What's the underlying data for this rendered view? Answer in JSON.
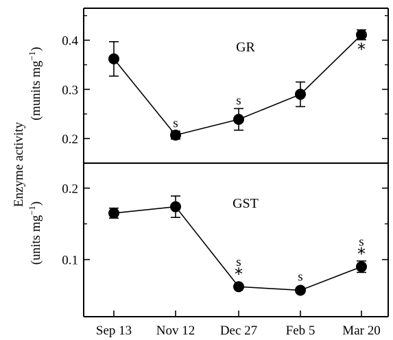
{
  "y_title": {
    "line1": "Enzyme activity",
    "top_unit_prefix": "(munits mg",
    "bottom_unit_prefix": "(units mg",
    "unit_exp": "−1",
    "unit_suffix": ")"
  },
  "chart_data": [
    {
      "type": "line",
      "panel": "top",
      "label": "GR",
      "categories": [
        "Sep 13",
        "Nov 12",
        "Dec 27",
        "Feb 5",
        "Mar 20"
      ],
      "values": [
        0.362,
        0.207,
        0.239,
        0.29,
        0.411
      ],
      "errors": [
        0.035,
        0.008,
        0.022,
        0.025,
        0.01
      ],
      "annotations": [
        "",
        "s",
        "s",
        "",
        "*"
      ],
      "ylim": [
        0.15,
        0.465
      ],
      "yticks": [
        0.2,
        0.3,
        0.4
      ],
      "ytick_labels": [
        "0.2",
        "0.3",
        "0.4"
      ],
      "grid": false
    },
    {
      "type": "line",
      "panel": "bottom",
      "label": "GST",
      "categories": [
        "Sep 13",
        "Nov 12",
        "Dec 27",
        "Feb 5",
        "Mar 20"
      ],
      "values": [
        0.165,
        0.174,
        0.062,
        0.057,
        0.09
      ],
      "errors": [
        0.007,
        0.015,
        0.0,
        0.0,
        0.008
      ],
      "annotations": [
        "",
        "",
        "s*",
        "s",
        "s*"
      ],
      "ylim": [
        0.02,
        0.235
      ],
      "yticks": [
        0.1,
        0.2
      ],
      "ytick_labels": [
        "0.1",
        "0.2"
      ],
      "grid": false
    }
  ]
}
